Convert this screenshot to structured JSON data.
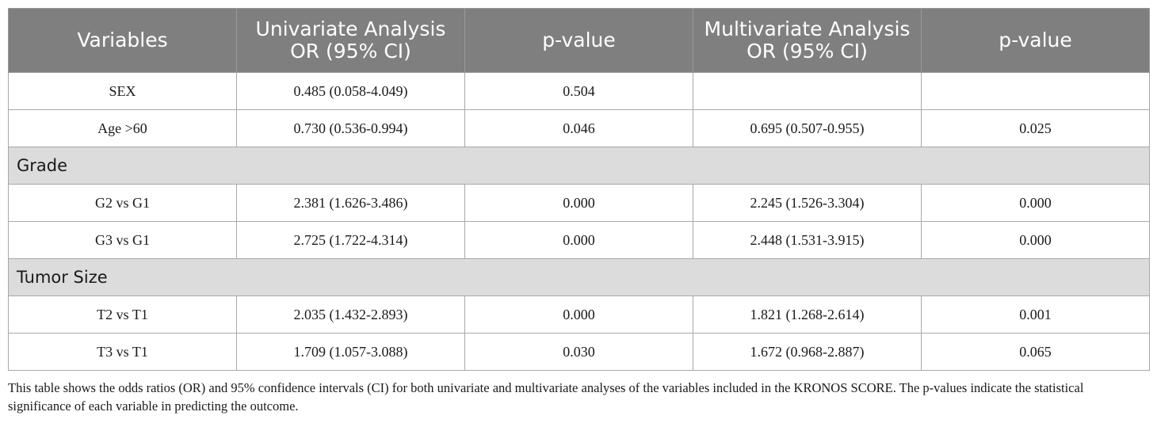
{
  "table": {
    "headers": [
      {
        "line1": "Variables",
        "line2": ""
      },
      {
        "line1": "Univariate Analysis",
        "line2": "OR (95% CI)"
      },
      {
        "line1": "p-value",
        "line2": ""
      },
      {
        "line1": "Multivariate Analysis",
        "line2": "OR (95% CI)"
      },
      {
        "line1": "p-value",
        "line2": ""
      }
    ],
    "rows": [
      {
        "type": "data",
        "cells": [
          "SEX",
          "0.485 (0.058-4.049)",
          "0.504",
          "",
          ""
        ]
      },
      {
        "type": "data",
        "cells": [
          "Age >60",
          "0.730 (0.536-0.994)",
          "0.046",
          "0.695 (0.507-0.955)",
          "0.025"
        ]
      },
      {
        "type": "section",
        "label": "Grade"
      },
      {
        "type": "data",
        "cells": [
          "G2 vs G1",
          "2.381 (1.626-3.486)",
          "0.000",
          "2.245 (1.526-3.304)",
          "0.000"
        ]
      },
      {
        "type": "data",
        "cells": [
          "G3 vs G1",
          "2.725 (1.722-4.314)",
          "0.000",
          "2.448 (1.531-3.915)",
          "0.000"
        ]
      },
      {
        "type": "section",
        "label": "Tumor Size"
      },
      {
        "type": "data",
        "cells": [
          "T2 vs T1",
          "2.035 (1.432-2.893)",
          "0.000",
          "1.821 (1.268-2.614)",
          "0.001"
        ]
      },
      {
        "type": "data",
        "cells": [
          "T3 vs T1",
          "1.709 (1.057-3.088)",
          "0.030",
          "1.672 (0.968-2.887)",
          "0.065"
        ]
      }
    ]
  },
  "footnote": "This table shows the odds ratios (OR) and 95% confidence intervals (CI) for both univariate and multivariate analyses of the variables included in the KRONOS SCORE. The p-values indicate the statistical significance of each variable in predicting the outcome.",
  "colors": {
    "header_bg": "#7f7f7f",
    "section_bg": "#dcdcdc",
    "border": "#a8a8a8"
  }
}
